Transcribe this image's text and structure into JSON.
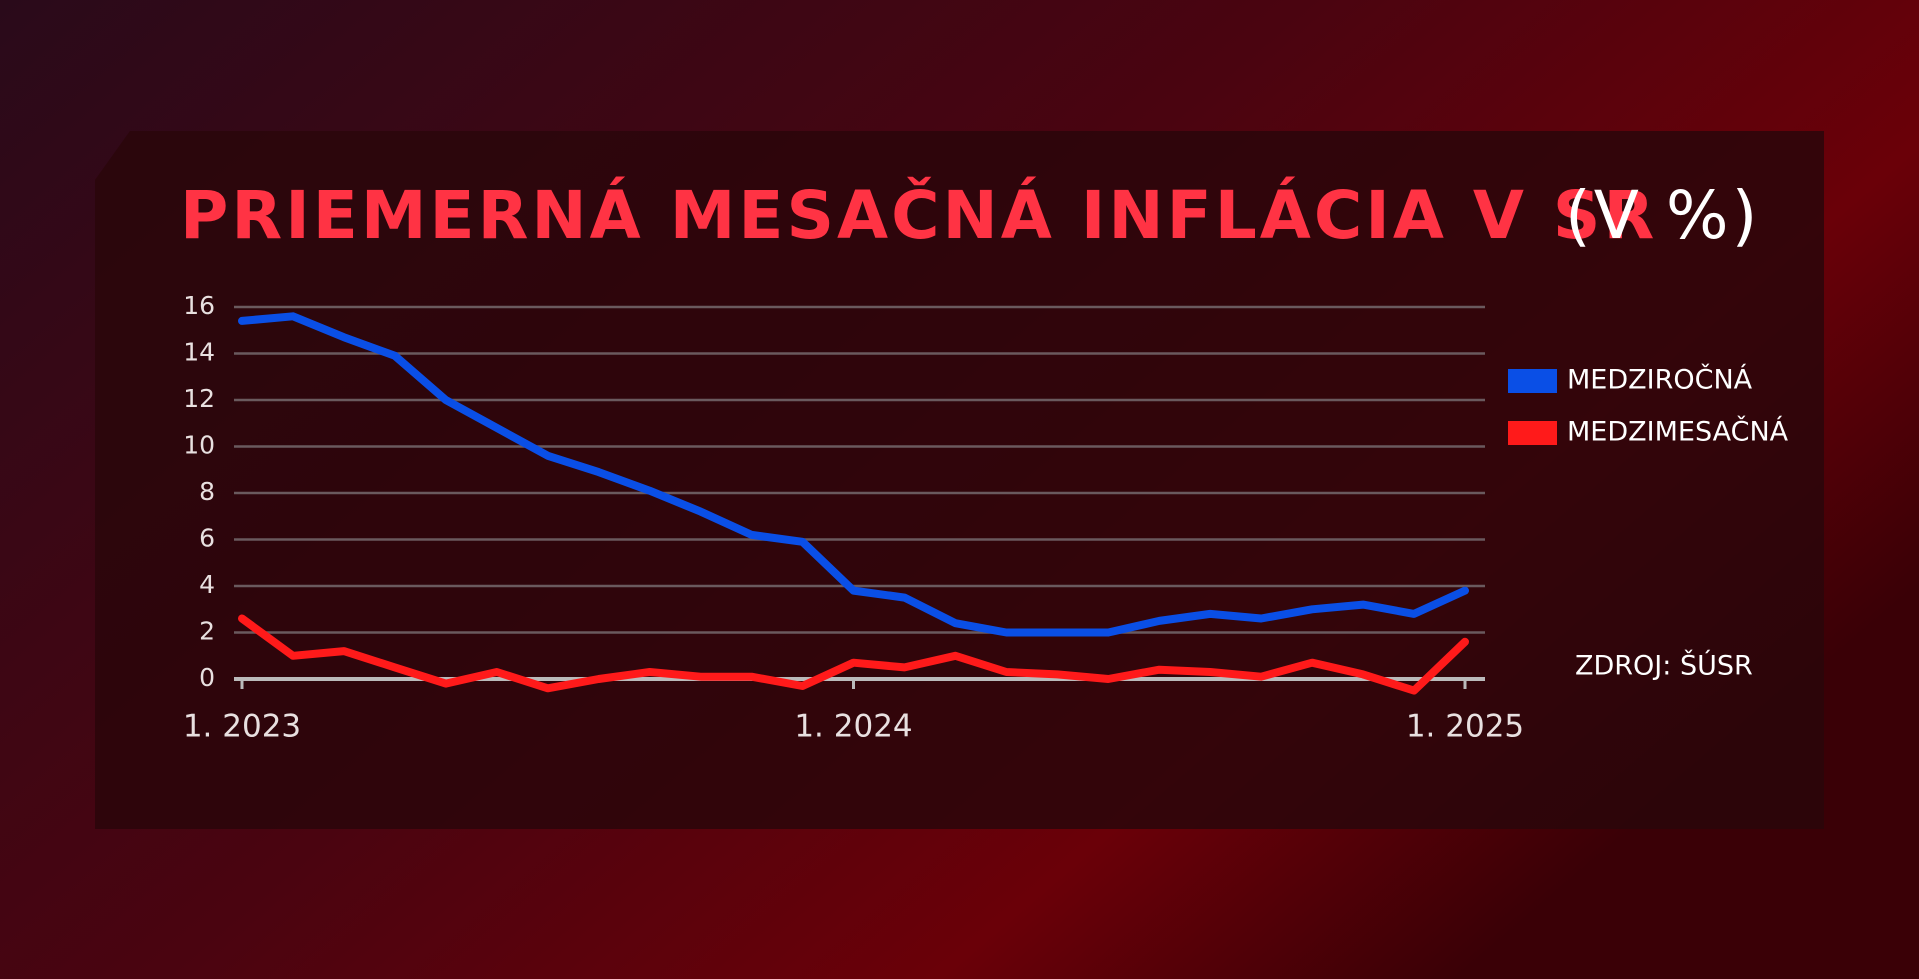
{
  "chart_data": {
    "type": "line",
    "title": "PRIEMERNÁ MESAČNÁ INFLÁCIA V SR",
    "title_unit": "(V %)",
    "source": "ZDROJ: ŠÚSR",
    "categories": [
      "1. 2023",
      null,
      null,
      null,
      null,
      null,
      null,
      null,
      null,
      null,
      null,
      null,
      "1. 2024",
      null,
      null,
      null,
      null,
      null,
      null,
      null,
      null,
      null,
      null,
      null,
      "1. 2025"
    ],
    "series": [
      {
        "name": "MEDZIROČNÁ",
        "color": "#0a4fe6",
        "values": [
          15.4,
          15.6,
          14.7,
          13.9,
          12.0,
          10.8,
          9.6,
          8.9,
          8.1,
          7.2,
          6.2,
          5.9,
          3.8,
          3.5,
          2.4,
          2.0,
          2.0,
          2.0,
          2.5,
          2.8,
          2.6,
          3.0,
          3.2,
          2.8,
          3.8
        ]
      },
      {
        "name": "MEDZIMESAČNÁ",
        "color": "#ff1a1a",
        "values": [
          2.6,
          1.0,
          1.2,
          0.5,
          -0.2,
          0.3,
          -0.4,
          0.0,
          0.3,
          0.1,
          0.1,
          -0.3,
          0.7,
          0.5,
          1.0,
          0.3,
          0.2,
          0.0,
          0.4,
          0.3,
          0.1,
          0.7,
          0.2,
          -0.5,
          1.6
        ]
      }
    ],
    "ylim": [
      0,
      16
    ],
    "yticks": [
      0,
      2,
      4,
      6,
      8,
      10,
      12,
      14,
      16
    ],
    "grid": true,
    "legend": "right"
  }
}
